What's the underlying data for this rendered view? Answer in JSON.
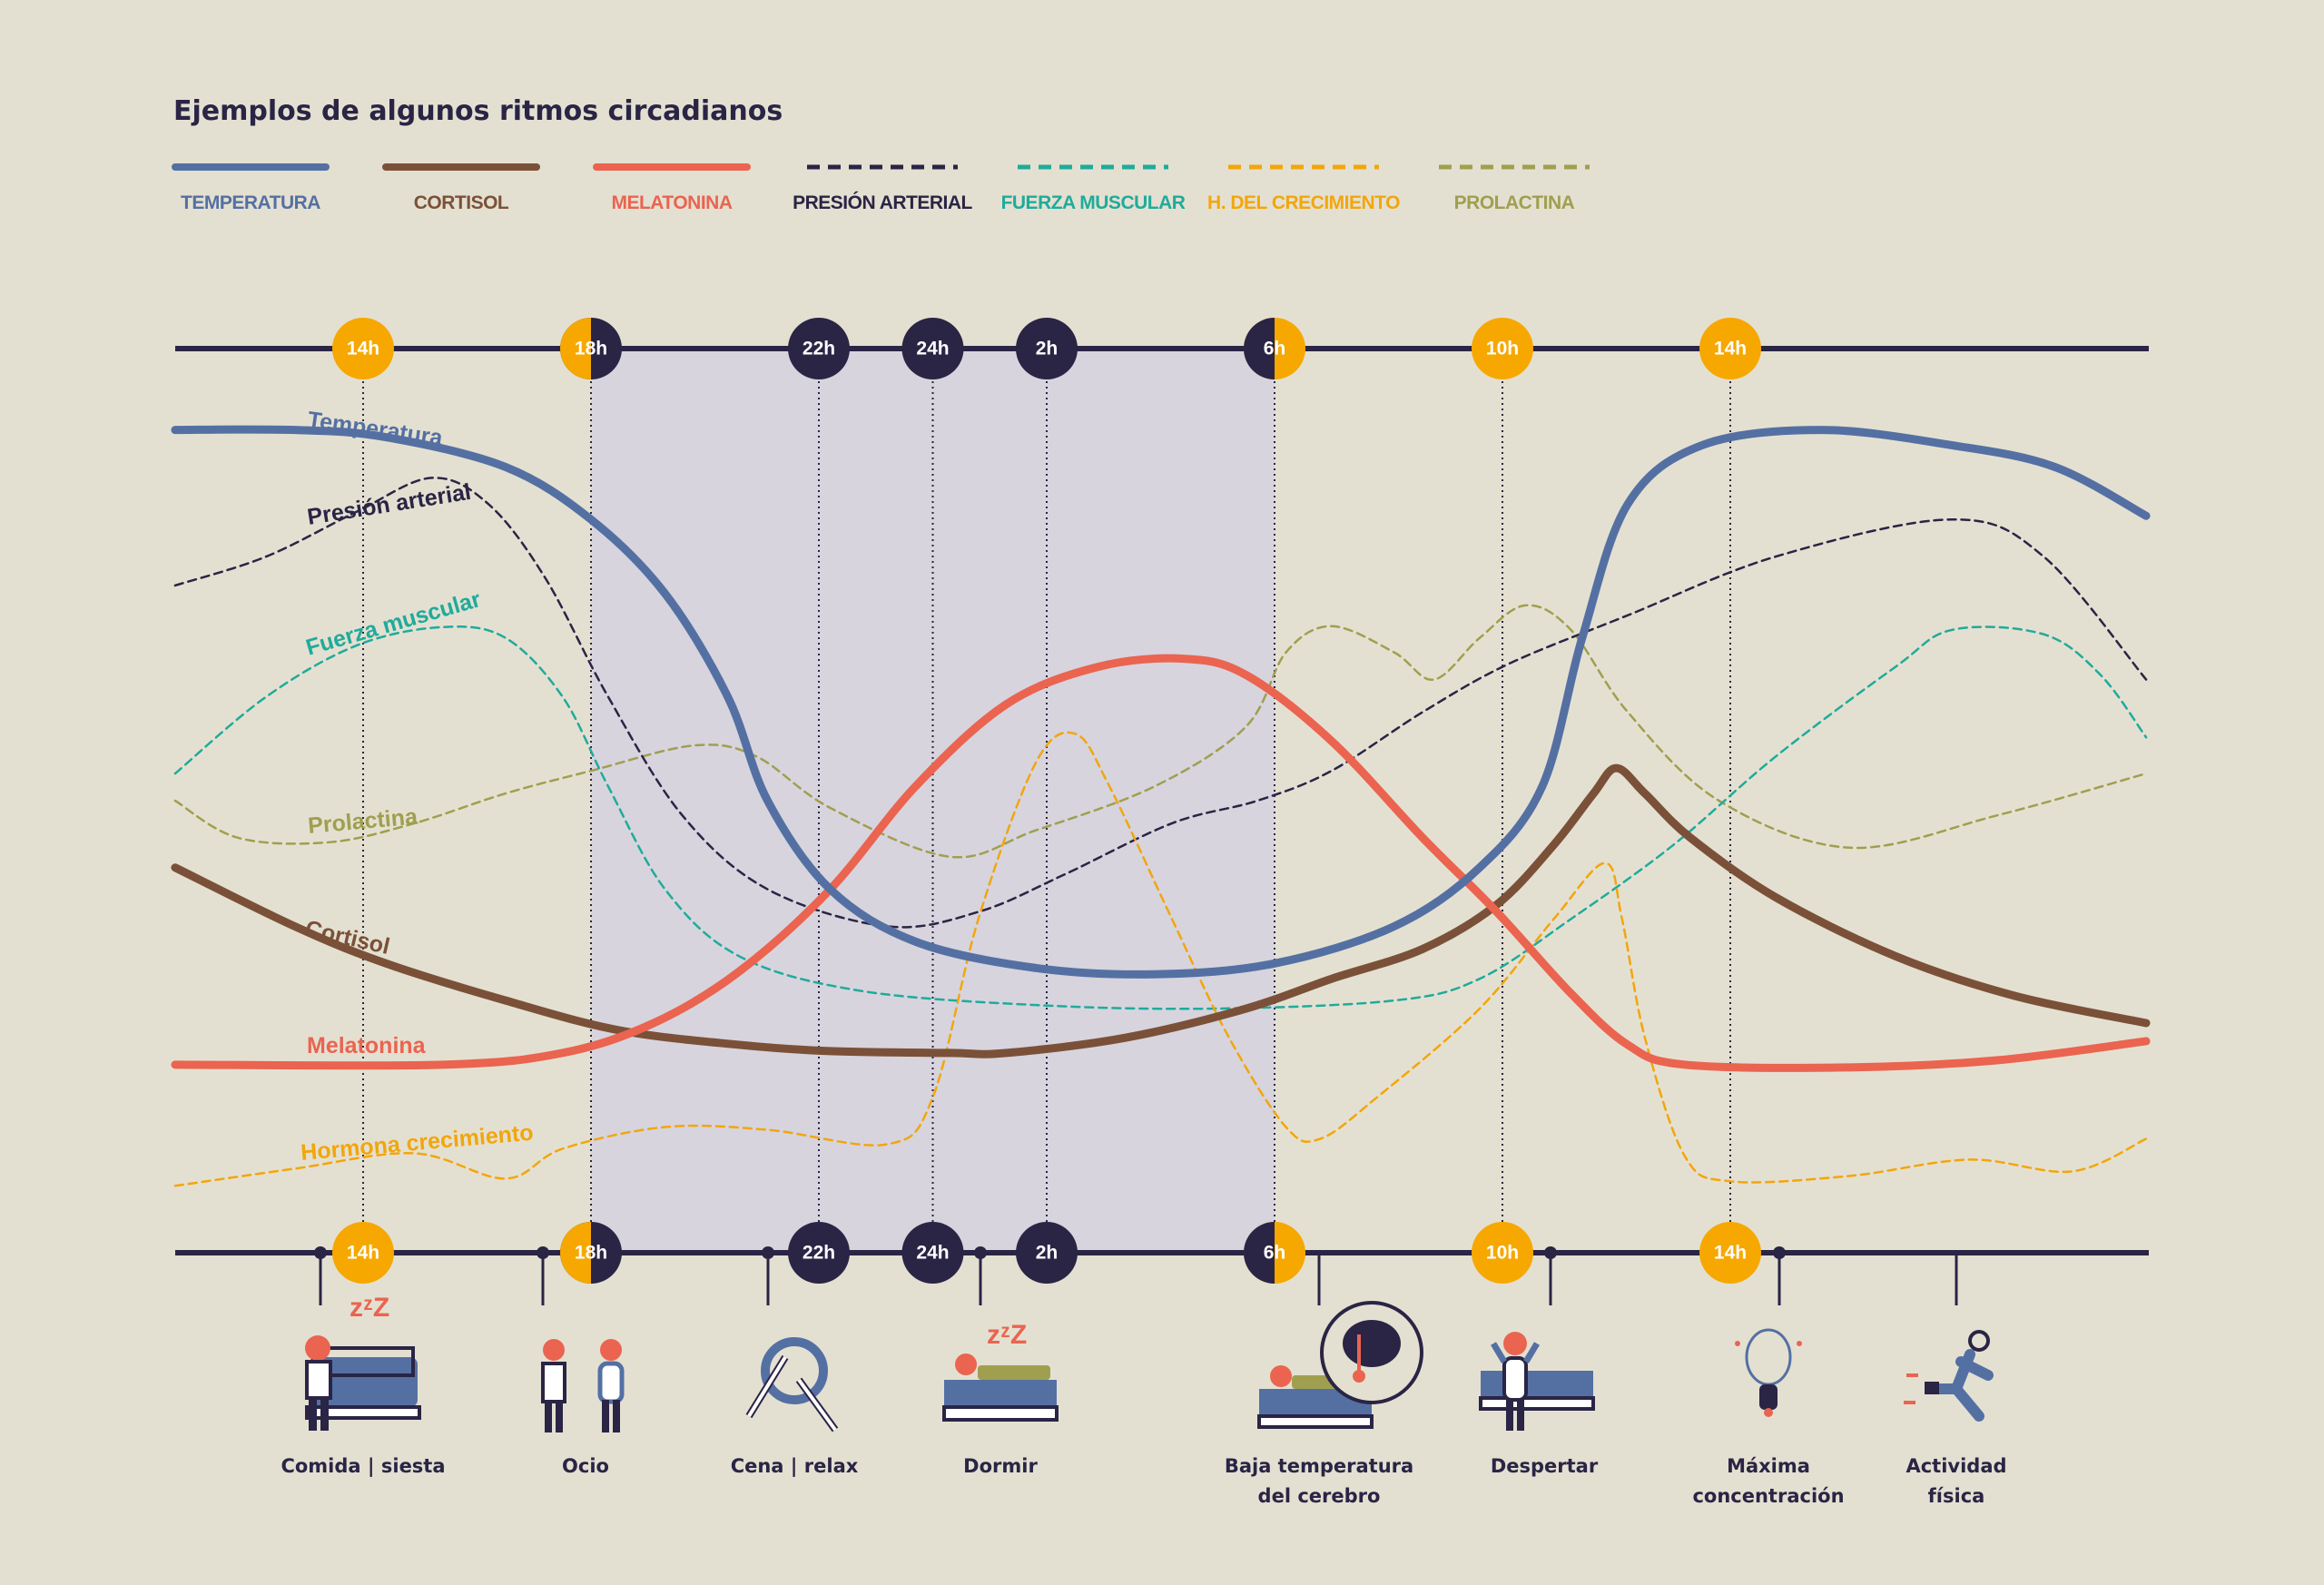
{
  "chart_data": {
    "type": "line",
    "title": "Ejemplos de algunos ritmos circadianos",
    "xlabel": "",
    "ylabel": "",
    "x_unit": "hour of day (continuous, 24=midnight, 38=14h next day)",
    "xlim": [
      10.7,
      45.3
    ],
    "ylim": [
      0,
      100
    ],
    "grid": false,
    "legend_position": "top",
    "hour_ticks": [
      {
        "h": 14,
        "label": "14h",
        "style": "day"
      },
      {
        "h": 18,
        "label": "18h",
        "style": "dusk"
      },
      {
        "h": 22,
        "label": "22h",
        "style": "night"
      },
      {
        "h": 24,
        "label": "24h",
        "style": "night"
      },
      {
        "h": 26,
        "label": "2h",
        "style": "night"
      },
      {
        "h": 30,
        "label": "6h",
        "style": "dawn"
      },
      {
        "h": 34,
        "label": "10h",
        "style": "day"
      },
      {
        "h": 38,
        "label": "14h",
        "style": "day"
      }
    ],
    "night_band": [
      18,
      30
    ],
    "series": [
      {
        "name": "TEMPERATURA",
        "curve_label": "Temperatura",
        "color": "#5470a3",
        "dashed": false,
        "x": [
          10.7,
          12.8,
          14.4,
          16.5,
          18.0,
          19.3,
          20.4,
          21.1,
          22.2,
          23.7,
          25.8,
          27.9,
          30.0,
          32.1,
          33.6,
          34.7,
          35.4,
          36.2,
          37.5,
          39.6,
          41.9,
          43.7,
          45.3
        ],
        "values": [
          91,
          91,
          90.2,
          86.9,
          81.1,
          72.9,
          61.5,
          50,
          40.2,
          34.4,
          31.5,
          30.8,
          32,
          36.1,
          42.6,
          51.6,
          68,
          82.8,
          89.3,
          91,
          89.3,
          86.9,
          81.5
        ]
      },
      {
        "name": "CORTISOL",
        "curve_label": "Cortisol",
        "color": "#7a5138",
        "dashed": false,
        "x": [
          10.7,
          12.8,
          14.4,
          16.5,
          18.5,
          20.6,
          22.2,
          24.3,
          25.3,
          27.4,
          29.5,
          31.0,
          32.6,
          33.9,
          34.9,
          35.6,
          36.0,
          36.5,
          37.3,
          38.8,
          40.9,
          43.0,
          45.3
        ],
        "values": [
          42.6,
          36.1,
          32,
          27.9,
          24.6,
          23,
          22.3,
          22.1,
          22.1,
          23.8,
          27,
          30.3,
          33.6,
          38.5,
          45.1,
          50.8,
          53.6,
          50.8,
          45.9,
          39.3,
          32.8,
          28.4,
          25.4
        ]
      },
      {
        "name": "MELATONINA",
        "curve_label": "Melatonina",
        "color": "#ea6450",
        "dashed": false,
        "x": [
          10.7,
          15.4,
          17.5,
          19.1,
          20.6,
          22.2,
          23.7,
          25.3,
          26.9,
          28.4,
          29.5,
          31.0,
          32.6,
          33.9,
          35.2,
          36.2,
          37.2,
          40.1,
          42.7,
          45.3
        ],
        "values": [
          20.8,
          20.8,
          22.1,
          25.4,
          31.1,
          40.2,
          51.6,
          60.7,
          64.8,
          65.7,
          63.9,
          56.6,
          45.9,
          37.7,
          28.7,
          23,
          20.8,
          20.5,
          21.3,
          23.4
        ]
      },
      {
        "name": "PRESIÓN ARTERIAL",
        "curve_label": "Presión arterial",
        "color": "#2a2445",
        "dashed": true,
        "x": [
          10.7,
          12.3,
          13.9,
          15.2,
          16.2,
          17.2,
          18.3,
          19.6,
          21.1,
          23.2,
          24.8,
          26.3,
          28.2,
          29.7,
          31.0,
          32.6,
          34.1,
          36.2,
          38.8,
          41.9,
          43.5,
          45.3
        ],
        "values": [
          73.8,
          77,
          82,
          85.7,
          82.8,
          74.6,
          61.5,
          48.4,
          40.2,
          36.1,
          37.7,
          41.8,
          47.5,
          50,
          53.3,
          59.8,
          65.1,
          70.5,
          77,
          81.1,
          77,
          63.4
        ]
      },
      {
        "name": "FUERZA MUSCULAR",
        "curve_label": "Fuerza muscular",
        "color": "#1fab9b",
        "dashed": true,
        "x": [
          10.7,
          12.3,
          13.9,
          15.4,
          16.5,
          17.5,
          18.3,
          19.3,
          20.6,
          22.7,
          25.8,
          28.9,
          32.1,
          33.6,
          35.2,
          37.0,
          38.8,
          40.9,
          41.9,
          43.5,
          44.5,
          45.3
        ],
        "values": [
          53,
          61.5,
          67.2,
          69.2,
          68,
          61.5,
          51.6,
          40.2,
          32.8,
          29,
          27.4,
          27,
          27.9,
          30.3,
          36.9,
          45.1,
          54.9,
          64.8,
          68.9,
          68.4,
          63.9,
          57
        ]
      },
      {
        "name": "H. DEL CRECIMIENTO",
        "curve_label": "Hormona crecimiento",
        "color": "#f2a60c",
        "dashed": true,
        "x": [
          10.7,
          12.8,
          14.9,
          16.5,
          17.5,
          19.3,
          21.1,
          23.2,
          24.0,
          24.8,
          25.8,
          26.5,
          27.1,
          28.2,
          29.2,
          30.2,
          30.8,
          31.8,
          33.6,
          34.9,
          35.8,
          36.1,
          36.5,
          37.2,
          38.0,
          40.1,
          42.2,
          44.0,
          45.3
        ],
        "values": [
          7.4,
          9.3,
          11,
          8.2,
          11.5,
          13.9,
          13.6,
          12,
          17.2,
          36.9,
          54.1,
          57.4,
          51.6,
          36.9,
          23.8,
          13.9,
          12.6,
          17.2,
          27,
          36.9,
          43.1,
          36.9,
          23.8,
          10.7,
          7.9,
          8.5,
          10.3,
          9,
          12.6
        ]
      },
      {
        "name": "PROLACTINA",
        "curve_label": "Prolactina",
        "color": "#a09f4f",
        "dashed": true,
        "x": [
          10.7,
          11.8,
          13.4,
          14.9,
          16.5,
          18.0,
          19.8,
          20.9,
          22.2,
          24.3,
          25.8,
          27.9,
          29.5,
          30.2,
          31.0,
          32.1,
          32.8,
          33.6,
          34.4,
          35.2,
          36.2,
          37.8,
          40.1,
          42.7,
          45.3
        ],
        "values": [
          50,
          45.9,
          45.4,
          47.5,
          50.8,
          53.3,
          56.1,
          54.9,
          49.2,
          43.8,
          46.7,
          51.6,
          58.2,
          66.4,
          69.3,
          66.4,
          63.4,
          68,
          71.6,
          68.9,
          59.8,
          50,
          44.8,
          48.4,
          53
        ]
      }
    ]
  },
  "events": [
    {
      "label": [
        "Comida | siesta"
      ],
      "icon": "nap-on-sofa-icon"
    },
    {
      "label": [
        "Ocio"
      ],
      "icon": "two-people-icon"
    },
    {
      "label": [
        "Cena | relax"
      ],
      "icon": "plate-fork-knife-icon"
    },
    {
      "label": [
        "Dormir"
      ],
      "icon": "sleep-in-bed-icon"
    },
    {
      "label": [
        "Baja temperatura",
        "del cerebro"
      ],
      "icon": "brain-thermometer-icon"
    },
    {
      "label": [
        "Despertar"
      ],
      "icon": "wake-up-icon"
    },
    {
      "label": [
        "Máxima",
        "concentración"
      ],
      "icon": "lightbulb-icon"
    },
    {
      "label": [
        "Actividad",
        "física"
      ],
      "icon": "running-person-icon"
    }
  ],
  "colors": {
    "background": "#e4e0d1",
    "navy": "#2a2445",
    "night_band": "#d7d4de",
    "day": "#f6a800"
  }
}
